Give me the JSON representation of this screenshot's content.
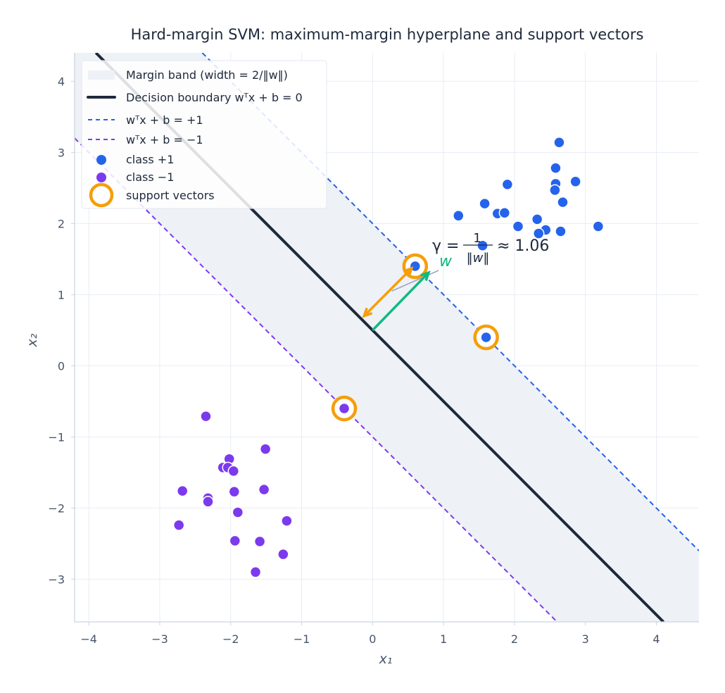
{
  "chart_data": {
    "type": "scatter",
    "title": "Hard-margin SVM: maximum-margin hyperplane and support vectors",
    "xlabel": "x₁",
    "ylabel": "x₂",
    "xlim": [
      -4.2,
      4.6
    ],
    "ylim": [
      -3.6,
      4.4
    ],
    "grid": true,
    "legend_position": "top-left",
    "xticks": [
      -4,
      -3,
      -2,
      -1,
      0,
      1,
      2,
      3,
      4
    ],
    "yticks": [
      -3,
      -2,
      -1,
      0,
      1,
      2,
      3,
      4
    ],
    "tick_labels_x": [
      "−4",
      "−3",
      "−2",
      "−1",
      "0",
      "1",
      "2",
      "3",
      "4"
    ],
    "tick_labels_y": [
      "−3",
      "−2",
      "−1",
      "0",
      "1",
      "2",
      "3",
      "4"
    ],
    "w": [
      0.6667,
      0.6667
    ],
    "b": -0.3333,
    "colors": {
      "positive": "#2563eb",
      "negative": "#7c3aed",
      "boundary": "#1e293b",
      "support": "#f59e0b",
      "w_arrow": "#10b981",
      "band": "#eef1f6",
      "grid": "#e8edf4"
    },
    "series": [
      {
        "name": "class +1",
        "points": [
          [
            2.63,
            3.14
          ],
          [
            2.58,
            2.78
          ],
          [
            2.58,
            2.56
          ],
          [
            2.57,
            2.47
          ],
          [
            2.86,
            2.59
          ],
          [
            1.9,
            2.55
          ],
          [
            2.68,
            2.3
          ],
          [
            1.58,
            2.28
          ],
          [
            1.76,
            2.14
          ],
          [
            1.86,
            2.15
          ],
          [
            1.21,
            2.11
          ],
          [
            2.32,
            2.06
          ],
          [
            2.05,
            1.96
          ],
          [
            2.44,
            1.91
          ],
          [
            2.34,
            1.86
          ],
          [
            2.65,
            1.89
          ],
          [
            3.18,
            1.96
          ],
          [
            1.55,
            1.69
          ],
          [
            0.6,
            1.4
          ],
          [
            1.6,
            0.4
          ]
        ]
      },
      {
        "name": "class −1",
        "points": [
          [
            -2.35,
            -0.71
          ],
          [
            -1.51,
            -1.17
          ],
          [
            -2.02,
            -1.31
          ],
          [
            -2.11,
            -1.43
          ],
          [
            -2.04,
            -1.43
          ],
          [
            -1.96,
            -1.48
          ],
          [
            -2.68,
            -1.76
          ],
          [
            -1.95,
            -1.77
          ],
          [
            -1.53,
            -1.74
          ],
          [
            -2.32,
            -1.86
          ],
          [
            -2.32,
            -1.91
          ],
          [
            -1.9,
            -2.06
          ],
          [
            -2.73,
            -2.24
          ],
          [
            -1.21,
            -2.18
          ],
          [
            -1.94,
            -2.46
          ],
          [
            -1.59,
            -2.47
          ],
          [
            -1.26,
            -2.65
          ],
          [
            -1.65,
            -2.9
          ],
          [
            -0.4,
            -0.6
          ]
        ]
      },
      {
        "name": "support vectors",
        "points": [
          [
            0.6,
            1.4
          ],
          [
            1.6,
            0.4
          ],
          [
            -0.4,
            -0.6
          ]
        ]
      }
    ],
    "legend": [
      {
        "label": "Margin band (width  = 2/‖w‖)",
        "kind": "band"
      },
      {
        "label": "Decision boundary wᵀx + b = 0",
        "kind": "solid"
      },
      {
        "label": "wᵀx + b =  +1",
        "kind": "dash-pos"
      },
      {
        "label": "wᵀx + b =  −1",
        "kind": "dash-neg"
      },
      {
        "label": "class +1",
        "kind": "dot-pos"
      },
      {
        "label": "class −1",
        "kind": "dot-neg"
      },
      {
        "label": "support vectors",
        "kind": "ring"
      }
    ],
    "annotations": {
      "w_label": "w",
      "gamma_prefix": "γ =",
      "gamma_num": "1",
      "gamma_den": "‖w‖",
      "gamma_suffix": "≈ 1.06"
    }
  }
}
